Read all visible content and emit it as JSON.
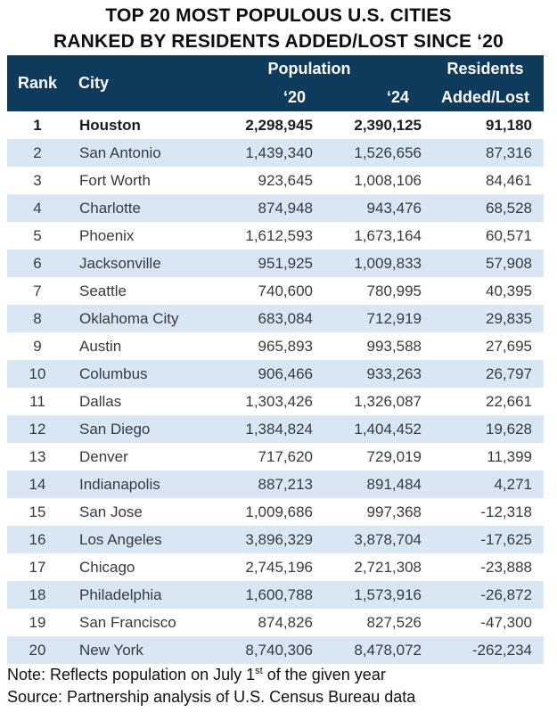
{
  "title": {
    "line1": "TOP 20 MOST POPULOUS U.S. CITIES",
    "line2": "RANKED BY RESIDENTS ADDED/LOST SINCE ‘20"
  },
  "chart_data": {
    "type": "table",
    "title": "TOP 20 MOST POPULOUS U.S. CITIES RANKED BY RESIDENTS ADDED/LOST SINCE ‘20",
    "columns": {
      "rank": "Rank",
      "city": "City",
      "population_group": "Population",
      "pop_2020": "‘20",
      "pop_2024": "‘24",
      "residents_line1": "Residents",
      "residents_line2": "Added/Lost"
    },
    "rows": [
      {
        "rank": "1",
        "city": "Houston",
        "pop_2020": "2,298,945",
        "pop_2024": "2,390,125",
        "change": "91,180"
      },
      {
        "rank": "2",
        "city": "San Antonio",
        "pop_2020": "1,439,340",
        "pop_2024": "1,526,656",
        "change": "87,316"
      },
      {
        "rank": "3",
        "city": "Fort Worth",
        "pop_2020": "923,645",
        "pop_2024": "1,008,106",
        "change": "84,461"
      },
      {
        "rank": "4",
        "city": "Charlotte",
        "pop_2020": "874,948",
        "pop_2024": "943,476",
        "change": "68,528"
      },
      {
        "rank": "5",
        "city": "Phoenix",
        "pop_2020": "1,612,593",
        "pop_2024": "1,673,164",
        "change": "60,571"
      },
      {
        "rank": "6",
        "city": "Jacksonville",
        "pop_2020": "951,925",
        "pop_2024": "1,009,833",
        "change": "57,908"
      },
      {
        "rank": "7",
        "city": "Seattle",
        "pop_2020": "740,600",
        "pop_2024": "780,995",
        "change": "40,395"
      },
      {
        "rank": "8",
        "city": "Oklahoma City",
        "pop_2020": "683,084",
        "pop_2024": "712,919",
        "change": "29,835"
      },
      {
        "rank": "9",
        "city": "Austin",
        "pop_2020": "965,893",
        "pop_2024": "993,588",
        "change": "27,695"
      },
      {
        "rank": "10",
        "city": "Columbus",
        "pop_2020": "906,466",
        "pop_2024": "933,263",
        "change": "26,797"
      },
      {
        "rank": "11",
        "city": "Dallas",
        "pop_2020": "1,303,426",
        "pop_2024": "1,326,087",
        "change": "22,661"
      },
      {
        "rank": "12",
        "city": "San Diego",
        "pop_2020": "1,384,824",
        "pop_2024": "1,404,452",
        "change": "19,628"
      },
      {
        "rank": "13",
        "city": "Denver",
        "pop_2020": "717,620",
        "pop_2024": "729,019",
        "change": "11,399"
      },
      {
        "rank": "14",
        "city": "Indianapolis",
        "pop_2020": "887,213",
        "pop_2024": "891,484",
        "change": "4,271"
      },
      {
        "rank": "15",
        "city": "San Jose",
        "pop_2020": "1,009,686",
        "pop_2024": "997,368",
        "change": "-12,318"
      },
      {
        "rank": "16",
        "city": "Los Angeles",
        "pop_2020": "3,896,329",
        "pop_2024": "3,878,704",
        "change": "-17,625"
      },
      {
        "rank": "17",
        "city": "Chicago",
        "pop_2020": "2,745,196",
        "pop_2024": "2,721,308",
        "change": "-23,888"
      },
      {
        "rank": "18",
        "city": "Philadelphia",
        "pop_2020": "1,600,788",
        "pop_2024": "1,573,916",
        "change": "-26,872"
      },
      {
        "rank": "19",
        "city": "San Francisco",
        "pop_2020": "874,826",
        "pop_2024": "827,526",
        "change": "-47,300"
      },
      {
        "rank": "20",
        "city": "New York",
        "pop_2020": "8,740,306",
        "pop_2024": "8,478,072",
        "change": "-262,234"
      }
    ]
  },
  "footer": {
    "note_prefix": "Note: Reflects population on July 1",
    "note_superscript": "st",
    "note_suffix": " of the given year",
    "source": "Source: Partnership analysis of U.S. Census Bureau data"
  },
  "colors": {
    "header_bg": "#0E3A5C",
    "header_text": "#FFFFFF",
    "alt_row_bg": "#D9E7F5",
    "row_text": "#363B40",
    "first_row_text": "#1C1C1C"
  }
}
